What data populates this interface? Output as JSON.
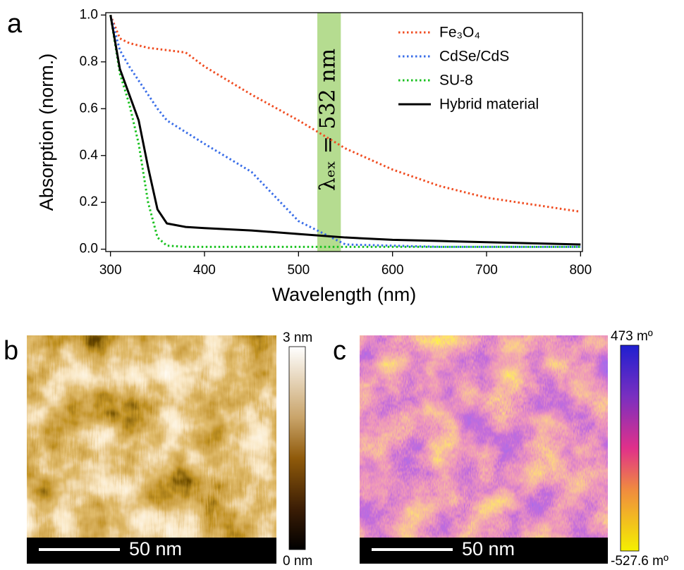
{
  "chart_data": {
    "type": "line",
    "x_label": "Wavelength (nm)",
    "y_label": "Absorption (norm.)",
    "x": [
      300,
      310,
      320,
      330,
      340,
      350,
      360,
      380,
      400,
      450,
      500,
      550,
      600,
      650,
      700,
      750,
      800
    ],
    "series": [
      {
        "name": "Fe₃O₄",
        "color": "#f04e23",
        "linestyle": "dotted",
        "values": [
          1.0,
          0.9,
          0.88,
          0.87,
          0.86,
          0.855,
          0.85,
          0.84,
          0.78,
          0.66,
          0.55,
          0.43,
          0.34,
          0.27,
          0.22,
          0.19,
          0.16
        ]
      },
      {
        "name": "CdSe/CdS",
        "color": "#3a6ee8",
        "linestyle": "dotted",
        "values": [
          1.0,
          0.85,
          0.78,
          0.72,
          0.66,
          0.6,
          0.55,
          0.5,
          0.45,
          0.33,
          0.12,
          0.02,
          0.015,
          0.01,
          0.01,
          0.01,
          0.01
        ]
      },
      {
        "name": "SU-8",
        "color": "#19c21f",
        "linestyle": "dotted",
        "values": [
          1.0,
          0.75,
          0.62,
          0.45,
          0.2,
          0.05,
          0.015,
          0.01,
          0.01,
          0.01,
          0.01,
          0.01,
          0.01,
          0.01,
          0.01,
          0.01,
          0.01
        ]
      },
      {
        "name": "Hybrid material",
        "color": "#000000",
        "linestyle": "solid",
        "values": [
          1.0,
          0.77,
          0.66,
          0.55,
          0.35,
          0.17,
          0.11,
          0.095,
          0.09,
          0.08,
          0.065,
          0.05,
          0.04,
          0.035,
          0.03,
          0.025,
          0.02
        ]
      }
    ],
    "xlim": [
      295,
      802
    ],
    "ylim": [
      -0.01,
      1.01
    ],
    "xticks": [
      300,
      400,
      500,
      600,
      700,
      800
    ],
    "yticks": [
      {
        "value": 0,
        "label": "0.0"
      },
      0.2,
      0.4,
      0.6,
      0.8,
      {
        "value": 1,
        "label": "1.0"
      }
    ],
    "legend": "upper right",
    "band": {
      "range": [
        520,
        545
      ],
      "color": "#b5dc90",
      "label": "λₑₓ = 532 nm"
    }
  },
  "panel_labels": [
    "a",
    "b",
    "c"
  ],
  "afm_height": {
    "scale_bar": "50 nm",
    "colorbar_max": "3 nm",
    "colorbar_min": "0 nm"
  },
  "afm_phase": {
    "scale_bar": "50 nm",
    "colorbar_max": "473 mº",
    "colorbar_min": "-527.6 mº"
  }
}
